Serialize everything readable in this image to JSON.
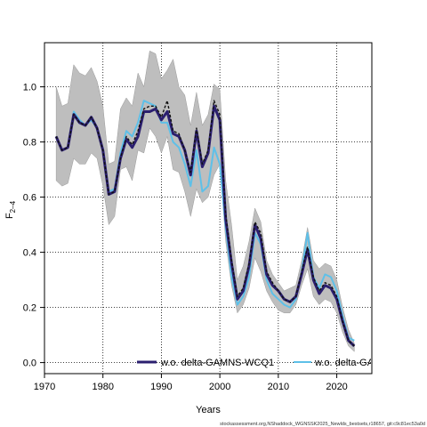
{
  "chart_data": {
    "type": "line",
    "xlabel": "Years",
    "ylabel_main": "F",
    "ylabel_sub": "2–4",
    "xlim": [
      1970,
      2026
    ],
    "ylim": [
      -0.04,
      1.16
    ],
    "x_ticks": [
      1970,
      1980,
      1990,
      2000,
      2010,
      2020
    ],
    "y_ticks": [
      0.0,
      0.2,
      0.4,
      0.6,
      0.8,
      1.0
    ],
    "x_tick_labels": [
      "1970",
      "1980",
      "1990",
      "2000",
      "2010",
      "2020"
    ],
    "y_tick_labels": [
      "0.0",
      "0.2",
      "0.4",
      "0.6",
      "0.8",
      "1.0"
    ],
    "grid": true,
    "legend_position": "bottom",
    "years": [
      1972,
      1973,
      1974,
      1975,
      1976,
      1977,
      1978,
      1979,
      1980,
      1981,
      1982,
      1983,
      1984,
      1985,
      1986,
      1987,
      1988,
      1989,
      1990,
      1991,
      1992,
      1993,
      1994,
      1995,
      1996,
      1997,
      1998,
      1999,
      2000,
      2001,
      2002,
      2003,
      2004,
      2005,
      2006,
      2007,
      2008,
      2009,
      2010,
      2011,
      2012,
      2013,
      2014,
      2015,
      2016,
      2017,
      2018,
      2019,
      2020,
      2021,
      2022,
      2023
    ],
    "band": {
      "upper": [
        1.0,
        0.93,
        0.94,
        1.08,
        1.05,
        1.04,
        1.07,
        1.02,
        0.93,
        0.72,
        0.73,
        0.92,
        0.96,
        0.93,
        1.05,
        1.0,
        1.13,
        1.12,
        1.03,
        1.06,
        1.1,
        1.0,
        0.97,
        0.86,
        0.98,
        0.86,
        0.9,
        1.01,
        0.99,
        0.66,
        0.5,
        0.3,
        0.35,
        0.44,
        0.56,
        0.51,
        0.37,
        0.32,
        0.29,
        0.26,
        0.27,
        0.28,
        0.37,
        0.49,
        0.37,
        0.34,
        0.36,
        0.35,
        0.3,
        0.2,
        0.12,
        0.07
      ],
      "lower": [
        0.66,
        0.64,
        0.65,
        0.74,
        0.72,
        0.72,
        0.76,
        0.74,
        0.64,
        0.5,
        0.53,
        0.7,
        0.71,
        0.66,
        0.77,
        0.76,
        0.85,
        0.82,
        0.76,
        0.82,
        0.7,
        0.69,
        0.62,
        0.53,
        0.63,
        0.58,
        0.6,
        0.68,
        0.72,
        0.44,
        0.28,
        0.18,
        0.21,
        0.27,
        0.38,
        0.33,
        0.26,
        0.22,
        0.19,
        0.18,
        0.18,
        0.21,
        0.28,
        0.34,
        0.24,
        0.21,
        0.23,
        0.22,
        0.18,
        0.11,
        0.06,
        0.04
      ]
    },
    "series": [
      {
        "name": "w.o. delta-GAMNS-WCQ1",
        "color": "#2b1f6f",
        "values": [
          0.82,
          0.77,
          0.78,
          0.9,
          0.87,
          0.86,
          0.89,
          0.85,
          0.77,
          0.61,
          0.62,
          0.74,
          0.81,
          0.78,
          0.82,
          0.91,
          0.91,
          0.92,
          0.88,
          0.91,
          0.83,
          0.82,
          0.77,
          0.68,
          0.84,
          0.71,
          0.76,
          0.93,
          0.88,
          0.52,
          0.36,
          0.23,
          0.26,
          0.35,
          0.5,
          0.45,
          0.32,
          0.28,
          0.26,
          0.23,
          0.22,
          0.24,
          0.32,
          0.41,
          0.3,
          0.25,
          0.28,
          0.27,
          0.23,
          0.15,
          0.08,
          0.06
        ]
      },
      {
        "name": "w.o. delta-GAMNS-WCQ1 (dashed)",
        "color": "#111111",
        "values": [
          0.82,
          0.77,
          0.78,
          0.9,
          0.87,
          0.86,
          0.89,
          0.85,
          0.77,
          0.61,
          0.62,
          0.74,
          0.82,
          0.79,
          0.84,
          0.92,
          0.93,
          0.93,
          0.89,
          0.95,
          0.84,
          0.83,
          0.77,
          0.69,
          0.85,
          0.72,
          0.77,
          0.95,
          0.9,
          0.54,
          0.37,
          0.24,
          0.27,
          0.36,
          0.51,
          0.47,
          0.33,
          0.29,
          0.26,
          0.23,
          0.22,
          0.24,
          0.33,
          0.42,
          0.31,
          0.26,
          0.29,
          0.28,
          0.24,
          0.15,
          0.08,
          0.06
        ]
      },
      {
        "name": "w.o. delta-GAI",
        "color": "#5ec0e8",
        "values": [
          0.82,
          0.77,
          0.78,
          0.91,
          0.88,
          0.86,
          0.88,
          0.85,
          0.77,
          0.62,
          0.63,
          0.76,
          0.84,
          0.82,
          0.87,
          0.95,
          0.94,
          0.93,
          0.87,
          0.87,
          0.8,
          0.78,
          0.72,
          0.64,
          0.77,
          0.62,
          0.64,
          0.78,
          0.72,
          0.49,
          0.31,
          0.21,
          0.24,
          0.31,
          0.47,
          0.43,
          0.3,
          0.25,
          0.23,
          0.21,
          0.2,
          0.23,
          0.33,
          0.47,
          0.31,
          0.27,
          0.32,
          0.31,
          0.26,
          0.17,
          0.09,
          0.08
        ]
      }
    ],
    "legend": [
      {
        "label": "w.o. delta-GAMNS-WCQ1",
        "color": "#2b1f6f"
      },
      {
        "label": "w.o. delta-GAI",
        "color": "#5ec0e8"
      }
    ]
  },
  "footer": "stockassessment.org,NShaddock_WGNSSK2025_Newlds_bestsets,r18657, git:c9c81ec53a0d",
  "colors": {
    "band": "#bebebe",
    "grid": "#000000",
    "background": "#ffffff"
  }
}
